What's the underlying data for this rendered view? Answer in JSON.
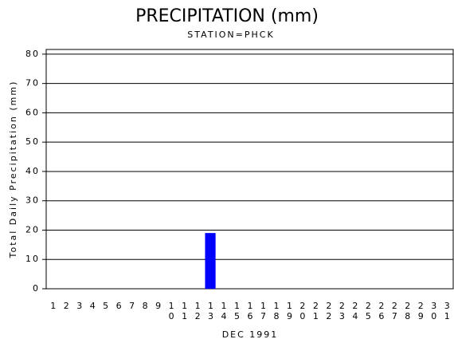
{
  "chart_data": {
    "type": "bar",
    "title": "PRECIPITATION (mm)",
    "subtitle": "STATION=PHCK",
    "x_label": "DEC 1991",
    "y_label": "Total Daily Precipitation (mm)",
    "categories": [
      "1",
      "2",
      "3",
      "4",
      "5",
      "6",
      "7",
      "8",
      "9",
      "10",
      "11",
      "12",
      "13",
      "14",
      "15",
      "16",
      "17",
      "18",
      "19",
      "20",
      "21",
      "22",
      "23",
      "24",
      "25",
      "26",
      "27",
      "28",
      "29",
      "30",
      "31"
    ],
    "values": [
      0,
      0,
      0,
      0,
      0,
      0,
      0,
      0,
      0,
      0,
      0,
      0,
      19,
      0,
      0,
      0,
      0,
      0,
      0,
      0,
      0,
      0,
      0,
      0,
      0,
      0,
      0,
      0,
      0,
      0,
      0
    ],
    "color": "#0000ff",
    "ylim": [
      0,
      81.6
    ],
    "yticks": [
      0,
      10,
      20,
      30,
      40,
      50,
      60,
      70,
      80
    ],
    "grid": true
  }
}
